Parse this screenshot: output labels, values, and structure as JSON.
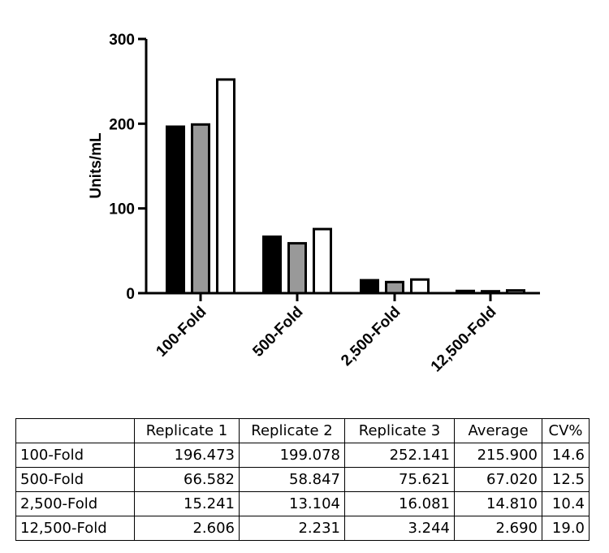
{
  "chart_data": {
    "type": "bar",
    "ylabel": "Units/mL",
    "ylim": [
      0,
      300
    ],
    "yticks": [
      "0",
      "100",
      "200",
      "300"
    ],
    "categories": [
      "100-Fold",
      "500-Fold",
      "2,500-Fold",
      "12,500-Fold"
    ],
    "series": [
      {
        "values": [
          196.473,
          66.582,
          15.241,
          2.606
        ],
        "color": "#000000"
      },
      {
        "values": [
          199.078,
          58.847,
          13.104,
          2.231
        ],
        "color": "#999999"
      },
      {
        "values": [
          252.141,
          75.621,
          16.081,
          3.244
        ],
        "color": "#ffffff"
      }
    ]
  },
  "table": {
    "headers": [
      "",
      "Replicate 1",
      "Replicate 2",
      "Replicate 3",
      "Average",
      "CV%"
    ],
    "rows": [
      [
        "100-Fold",
        "196.473",
        "199.078",
        "252.141",
        "215.900",
        "14.6"
      ],
      [
        "500-Fold",
        "66.582",
        "58.847",
        "75.621",
        "67.020",
        "12.5"
      ],
      [
        "2,500-Fold",
        "15.241",
        "13.104",
        "16.081",
        "14.810",
        "10.4"
      ],
      [
        "12,500-Fold",
        "2.606",
        "2.231",
        "3.244",
        "2.690",
        "19.0"
      ]
    ]
  }
}
